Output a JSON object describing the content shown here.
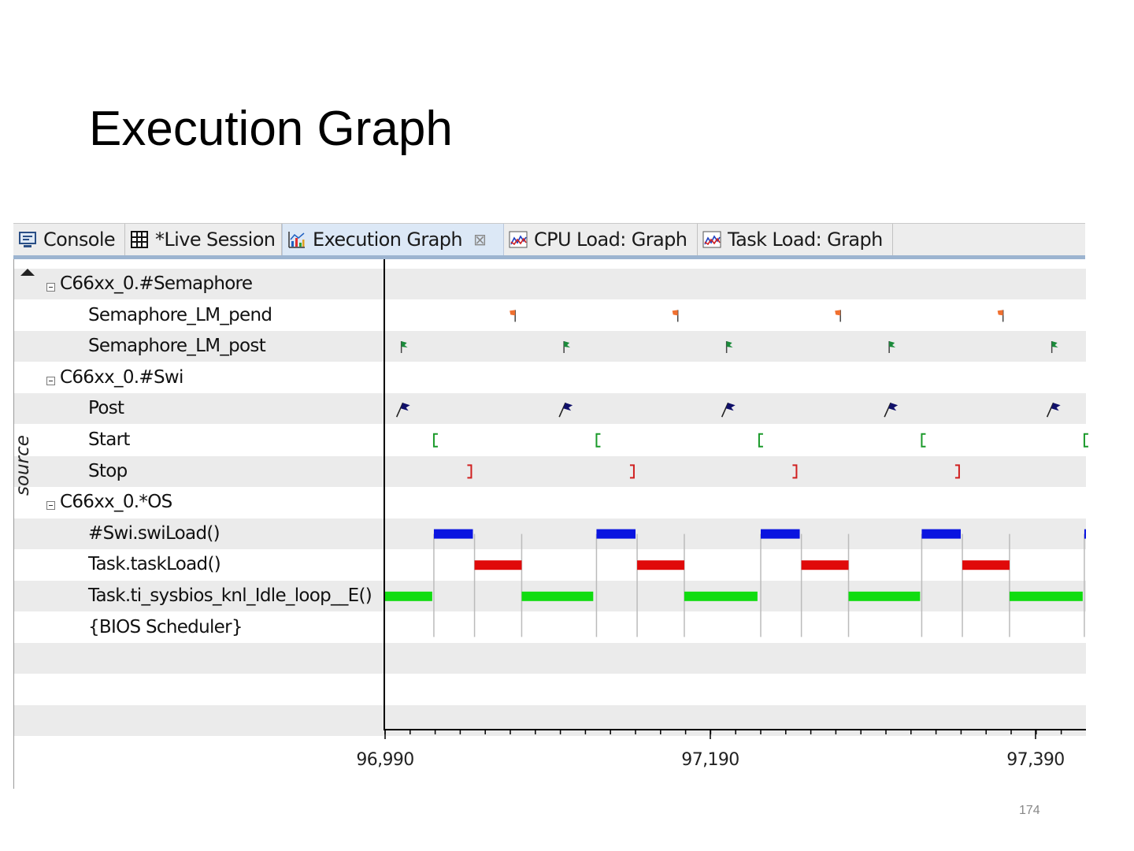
{
  "slide": {
    "title": "Execution Graph",
    "page_number": "174"
  },
  "tabs": [
    {
      "label": "Console",
      "icon": "console-icon",
      "active": false
    },
    {
      "label": "*Live Session",
      "icon": "grid-icon",
      "active": false
    },
    {
      "label": "Execution Graph",
      "icon": "bar-chart-icon",
      "active": true,
      "close_glyph": "⊠"
    },
    {
      "label": "CPU Load: Graph",
      "icon": "line-chart-icon",
      "active": false
    },
    {
      "label": "Task Load: Graph",
      "icon": "line-chart-icon",
      "active": false
    }
  ],
  "tree": {
    "axis_label": "source",
    "rows": [
      {
        "label": "C66xx_0.#Semaphore",
        "group": true
      },
      {
        "label": "Semaphore_LM_pend",
        "group": false
      },
      {
        "label": "Semaphore_LM_post",
        "group": false
      },
      {
        "label": "C66xx_0.#Swi",
        "group": true
      },
      {
        "label": "Post",
        "group": false
      },
      {
        "label": "Start",
        "group": false
      },
      {
        "label": "Stop",
        "group": false
      },
      {
        "label": "C66xx_0.*OS",
        "group": true
      },
      {
        "label": "#Swi.swiLoad()",
        "group": false
      },
      {
        "label": "Task.taskLoad()",
        "group": false
      },
      {
        "label": "Task.ti_sysbios_knl_Idle_loop__E()",
        "group": false
      },
      {
        "label": "{BIOS Scheduler}",
        "group": false
      }
    ]
  },
  "colors": {
    "pend_flag": "#f07030",
    "post_flag": "#1a8a3a",
    "swi_post_flag": "#10106a",
    "start_bracket": "#1a9a2a",
    "stop_bracket": "#d02020",
    "swi_load": "#0a14e0",
    "task_load": "#e00a0a",
    "idle_loop": "#10dc10",
    "transition": "#bbbbbb"
  },
  "chart_data": {
    "type": "table",
    "x_axis": {
      "tick_labels": [
        "96,990",
        "97,190",
        "97,390"
      ],
      "tick_values": [
        96990,
        97190,
        97390
      ],
      "range": [
        96990,
        97421
      ],
      "minor_tick_step": 15.4
    },
    "period": 100,
    "events": {
      "semaphore_pend": [
        97070,
        97170,
        97270,
        97370
      ],
      "semaphore_post": [
        97000,
        97100,
        97200,
        97300,
        97400
      ],
      "swi_post": [
        97000,
        97100,
        97200,
        97300,
        97400
      ],
      "swi_start": [
        97020,
        97120,
        97220,
        97320,
        97420
      ],
      "swi_stop": [
        97043,
        97143,
        97243,
        97343
      ]
    },
    "intervals": {
      "swi_load": [
        [
          97020,
          97044
        ],
        [
          97120,
          97144
        ],
        [
          97221,
          97245
        ],
        [
          97320,
          97344
        ],
        [
          97420,
          97421
        ]
      ],
      "task_load": [
        [
          97045,
          97074
        ],
        [
          97145,
          97174
        ],
        [
          97246,
          97275
        ],
        [
          97345,
          97374
        ]
      ],
      "idle_loop": [
        [
          96990,
          97019
        ],
        [
          97074,
          97118
        ],
        [
          97174,
          97219
        ],
        [
          97275,
          97319
        ],
        [
          97374,
          97419
        ]
      ]
    }
  }
}
